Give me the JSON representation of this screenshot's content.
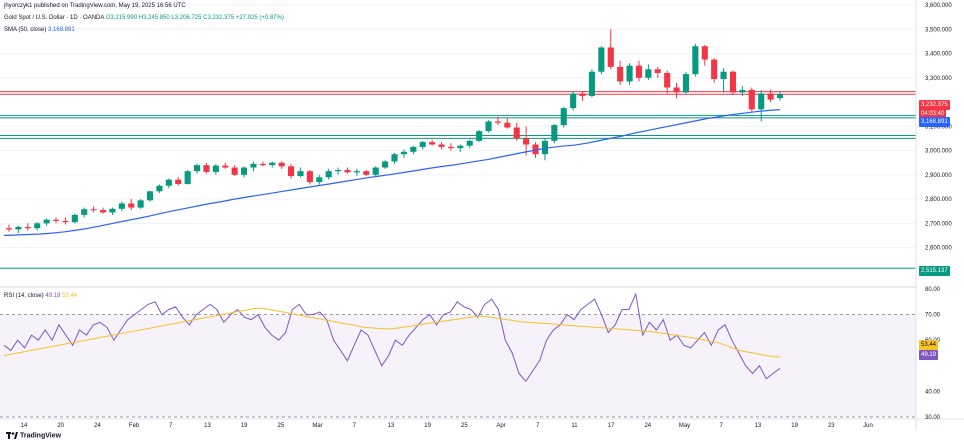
{
  "header": {
    "published": "jhyorczyk1 published on TradingView.com, May 19, 2025 16:56 UTC",
    "symbol": "Gold Spot / U.S. Dollar · 1D · OANDA",
    "ohlc": "O3,215.990 H3,245.850 L3,206.725 C3,232.375 +27.925 (+0.87%)",
    "sma_label": "SMA (50, close)",
    "sma_value": "3,168.891",
    "rsi_label": "RSI (14, close)",
    "rsi_value": "49.19",
    "rsi_ma_value": "53.44"
  },
  "price_tags": {
    "close": "3,232.375",
    "close_sub": "04:03:40",
    "sma": "3,168.891",
    "level": "2,515.137"
  },
  "rsi_tags": {
    "ma": "53.44",
    "rsi": "49.19"
  },
  "footer": {
    "brand": "TradingView"
  },
  "colors": {
    "up": "#089981",
    "down": "#f23645",
    "sma": "#2962ff",
    "rsi": "#7e57c2",
    "rsi_ma": "#f7c325",
    "resistance": "#f23645",
    "support": "#089981"
  },
  "chart_data": [
    {
      "type": "candlestick",
      "title": "Gold Spot / U.S. Dollar · 1D · OANDA",
      "ylim": [
        2450,
        3600
      ],
      "y_ticks": [
        "3,600.000",
        "3,500.000",
        "3,400.000",
        "3,300.000",
        "3,100.000",
        "3,000.000",
        "2,900.000",
        "2,800.000",
        "2,700.000",
        "2,600.000"
      ],
      "x_ticks": [
        "14",
        "20",
        "24",
        "Feb",
        "7",
        "13",
        "19",
        "25",
        "Mar",
        "7",
        "13",
        "19",
        "25",
        "Apr",
        "7",
        "11",
        "17",
        "24",
        "May",
        "7",
        "13",
        "19",
        "23",
        "Jun"
      ],
      "horizontal_levels": [
        {
          "price": 3232,
          "color": "#f23645"
        },
        {
          "price": 3243,
          "color": "#f23645"
        },
        {
          "price": 3145,
          "color": "#089981"
        },
        {
          "price": 3135,
          "color": "#089981"
        },
        {
          "price": 3062,
          "color": "#089981"
        },
        {
          "price": 3050,
          "color": "#089981"
        },
        {
          "price": 2515.137,
          "color": "#089981"
        }
      ],
      "candles": [
        {
          "o": 2680,
          "h": 2695,
          "l": 2665,
          "c": 2675
        },
        {
          "o": 2675,
          "h": 2690,
          "l": 2660,
          "c": 2685
        },
        {
          "o": 2685,
          "h": 2700,
          "l": 2670,
          "c": 2680
        },
        {
          "o": 2680,
          "h": 2705,
          "l": 2670,
          "c": 2700
        },
        {
          "o": 2700,
          "h": 2720,
          "l": 2690,
          "c": 2715
        },
        {
          "o": 2715,
          "h": 2725,
          "l": 2700,
          "c": 2710
        },
        {
          "o": 2710,
          "h": 2725,
          "l": 2695,
          "c": 2705
        },
        {
          "o": 2705,
          "h": 2740,
          "l": 2700,
          "c": 2735
        },
        {
          "o": 2735,
          "h": 2765,
          "l": 2725,
          "c": 2758
        },
        {
          "o": 2758,
          "h": 2770,
          "l": 2745,
          "c": 2755
        },
        {
          "o": 2755,
          "h": 2765,
          "l": 2740,
          "c": 2745
        },
        {
          "o": 2745,
          "h": 2765,
          "l": 2735,
          "c": 2760
        },
        {
          "o": 2760,
          "h": 2790,
          "l": 2750,
          "c": 2782
        },
        {
          "o": 2782,
          "h": 2800,
          "l": 2755,
          "c": 2765
        },
        {
          "o": 2765,
          "h": 2800,
          "l": 2760,
          "c": 2795
        },
        {
          "o": 2795,
          "h": 2835,
          "l": 2790,
          "c": 2832
        },
        {
          "o": 2832,
          "h": 2860,
          "l": 2825,
          "c": 2855
        },
        {
          "o": 2855,
          "h": 2885,
          "l": 2845,
          "c": 2880
        },
        {
          "o": 2880,
          "h": 2890,
          "l": 2855,
          "c": 2862
        },
        {
          "o": 2862,
          "h": 2920,
          "l": 2860,
          "c": 2915
        },
        {
          "o": 2915,
          "h": 2945,
          "l": 2905,
          "c": 2940
        },
        {
          "o": 2940,
          "h": 2950,
          "l": 2905,
          "c": 2912
        },
        {
          "o": 2912,
          "h": 2945,
          "l": 2900,
          "c": 2938
        },
        {
          "o": 2938,
          "h": 2950,
          "l": 2925,
          "c": 2930
        },
        {
          "o": 2930,
          "h": 2940,
          "l": 2895,
          "c": 2900
        },
        {
          "o": 2900,
          "h": 2935,
          "l": 2890,
          "c": 2930
        },
        {
          "o": 2930,
          "h": 2955,
          "l": 2915,
          "c": 2945
        },
        {
          "o": 2945,
          "h": 2955,
          "l": 2935,
          "c": 2940
        },
        {
          "o": 2940,
          "h": 2955,
          "l": 2930,
          "c": 2950
        },
        {
          "o": 2950,
          "h": 2955,
          "l": 2925,
          "c": 2935
        },
        {
          "o": 2935,
          "h": 2945,
          "l": 2885,
          "c": 2895
        },
        {
          "o": 2895,
          "h": 2930,
          "l": 2890,
          "c": 2915
        },
        {
          "o": 2915,
          "h": 2920,
          "l": 2860,
          "c": 2870
        },
        {
          "o": 2870,
          "h": 2900,
          "l": 2860,
          "c": 2890
        },
        {
          "o": 2890,
          "h": 2925,
          "l": 2880,
          "c": 2915
        },
        {
          "o": 2915,
          "h": 2930,
          "l": 2900,
          "c": 2920
        },
        {
          "o": 2920,
          "h": 2930,
          "l": 2905,
          "c": 2910
        },
        {
          "o": 2910,
          "h": 2925,
          "l": 2895,
          "c": 2915
        },
        {
          "o": 2915,
          "h": 2920,
          "l": 2895,
          "c": 2900
        },
        {
          "o": 2900,
          "h": 2935,
          "l": 2895,
          "c": 2930
        },
        {
          "o": 2930,
          "h": 2960,
          "l": 2925,
          "c": 2955
        },
        {
          "o": 2955,
          "h": 2990,
          "l": 2945,
          "c": 2985
        },
        {
          "o": 2985,
          "h": 3005,
          "l": 2970,
          "c": 2995
        },
        {
          "o": 2995,
          "h": 3020,
          "l": 2985,
          "c": 3015
        },
        {
          "o": 3015,
          "h": 3040,
          "l": 3005,
          "c": 3035
        },
        {
          "o": 3035,
          "h": 3045,
          "l": 3020,
          "c": 3025
        },
        {
          "o": 3025,
          "h": 3035,
          "l": 3005,
          "c": 3015
        },
        {
          "o": 3015,
          "h": 3030,
          "l": 3000,
          "c": 3010
        },
        {
          "o": 3010,
          "h": 3025,
          "l": 2995,
          "c": 3020
        },
        {
          "o": 3020,
          "h": 3045,
          "l": 3010,
          "c": 3040
        },
        {
          "o": 3040,
          "h": 3085,
          "l": 3035,
          "c": 3080
        },
        {
          "o": 3080,
          "h": 3125,
          "l": 3075,
          "c": 3120
        },
        {
          "o": 3120,
          "h": 3140,
          "l": 3105,
          "c": 3115
        },
        {
          "o": 3115,
          "h": 3135,
          "l": 3090,
          "c": 3095
        },
        {
          "o": 3095,
          "h": 3115,
          "l": 3040,
          "c": 3050
        },
        {
          "o": 3050,
          "h": 3100,
          "l": 2980,
          "c": 3025
        },
        {
          "o": 3025,
          "h": 3035,
          "l": 2970,
          "c": 2985
        },
        {
          "o": 2985,
          "h": 3050,
          "l": 2960,
          "c": 3040
        },
        {
          "o": 3040,
          "h": 3110,
          "l": 3030,
          "c": 3105
        },
        {
          "o": 3105,
          "h": 3180,
          "l": 3095,
          "c": 3175
        },
        {
          "o": 3175,
          "h": 3245,
          "l": 3165,
          "c": 3235
        },
        {
          "o": 3235,
          "h": 3245,
          "l": 3205,
          "c": 3225
        },
        {
          "o": 3225,
          "h": 3335,
          "l": 3220,
          "c": 3325
        },
        {
          "o": 3325,
          "h": 3430,
          "l": 3315,
          "c": 3425
        },
        {
          "o": 3425,
          "h": 3500,
          "l": 3335,
          "c": 3345
        },
        {
          "o": 3345,
          "h": 3370,
          "l": 3270,
          "c": 3285
        },
        {
          "o": 3285,
          "h": 3360,
          "l": 3270,
          "c": 3350
        },
        {
          "o": 3350,
          "h": 3370,
          "l": 3285,
          "c": 3300
        },
        {
          "o": 3300,
          "h": 3355,
          "l": 3290,
          "c": 3335
        },
        {
          "o": 3335,
          "h": 3345,
          "l": 3300,
          "c": 3320
        },
        {
          "o": 3320,
          "h": 3330,
          "l": 3235,
          "c": 3260
        },
        {
          "o": 3260,
          "h": 3280,
          "l": 3215,
          "c": 3240
        },
        {
          "o": 3240,
          "h": 3325,
          "l": 3235,
          "c": 3315
        },
        {
          "o": 3315,
          "h": 3440,
          "l": 3305,
          "c": 3430
        },
        {
          "o": 3430,
          "h": 3435,
          "l": 3350,
          "c": 3375
        },
        {
          "o": 3375,
          "h": 3380,
          "l": 3280,
          "c": 3295
        },
        {
          "o": 3295,
          "h": 3340,
          "l": 3240,
          "c": 3325
        },
        {
          "o": 3325,
          "h": 3330,
          "l": 3230,
          "c": 3240
        },
        {
          "o": 3240,
          "h": 3265,
          "l": 3225,
          "c": 3250
        },
        {
          "o": 3250,
          "h": 3260,
          "l": 3160,
          "c": 3170
        },
        {
          "o": 3170,
          "h": 3250,
          "l": 3120,
          "c": 3235
        },
        {
          "o": 3235,
          "h": 3252,
          "l": 3200,
          "c": 3210
        },
        {
          "o": 3216,
          "h": 3246,
          "l": 3207,
          "c": 3232
        }
      ],
      "sma": [
        2650,
        2652,
        2654,
        2656,
        2660,
        2665,
        2672,
        2680,
        2690,
        2700,
        2710,
        2720,
        2730,
        2742,
        2752,
        2762,
        2772,
        2782,
        2790,
        2800,
        2808,
        2816,
        2824,
        2832,
        2840,
        2848,
        2856,
        2864,
        2872,
        2880,
        2888,
        2895,
        2902,
        2910,
        2918,
        2926,
        2934,
        2940,
        2948,
        2956,
        2964,
        2974,
        2984,
        2994,
        3004,
        3012,
        3018,
        3022,
        3030,
        3040,
        3050,
        3060,
        3072,
        3082,
        3092,
        3102,
        3112,
        3122,
        3132,
        3140,
        3148,
        3154,
        3160,
        3165,
        3169
      ]
    },
    {
      "type": "line",
      "title": "RSI (14, close)",
      "ylim": [
        30,
        80
      ],
      "y_ticks": [
        "80.00",
        "70.00",
        "60.00",
        "40.00",
        "30.00"
      ],
      "series": [
        {
          "name": "RSI",
          "color": "#7e57c2",
          "values": [
            58,
            56,
            60,
            57,
            62,
            60,
            64,
            60,
            66,
            62,
            58,
            64,
            62,
            66,
            67,
            65,
            60,
            64,
            68,
            70,
            72,
            74,
            75,
            70,
            72,
            73,
            69,
            66,
            70,
            72,
            74,
            72,
            67,
            70,
            72,
            69,
            68,
            70,
            65,
            62,
            60,
            63,
            72,
            74,
            70,
            70,
            71,
            68,
            60,
            56,
            52,
            58,
            64,
            62,
            56,
            50,
            54,
            60,
            58,
            62,
            65,
            68,
            70,
            66,
            70,
            71,
            75,
            73,
            72,
            69,
            74,
            76,
            72,
            60,
            55,
            47,
            44,
            48,
            52,
            60,
            64,
            66,
            70,
            68,
            72,
            74,
            76,
            70,
            63,
            66,
            72,
            72,
            78,
            62,
            67,
            64,
            68,
            60,
            62,
            58,
            57,
            60,
            63,
            58,
            64,
            66,
            60,
            55,
            50,
            47,
            50,
            45,
            47,
            49
          ]
        },
        {
          "name": "RSI-based MA",
          "color": "#f7c325",
          "values": [
            54,
            54.5,
            55,
            55.5,
            56,
            56.5,
            57,
            57.5,
            58,
            58.5,
            59,
            59.5,
            60,
            60.5,
            61,
            61.5,
            62,
            62.5,
            63,
            63.5,
            64,
            64.5,
            65,
            65.5,
            66,
            66.5,
            67,
            67.5,
            68,
            68.5,
            69,
            69.5,
            70,
            70.5,
            71,
            71.5,
            72,
            72.5,
            72.5,
            72,
            71.5,
            71,
            70.5,
            70,
            69.5,
            69,
            68.5,
            68,
            67.5,
            67,
            66.5,
            66,
            65.5,
            65,
            64.8,
            64.6,
            64.4,
            64.5,
            64.8,
            65.2,
            65.6,
            66,
            66.4,
            66.8,
            67.2,
            67.6,
            68,
            68.4,
            68.8,
            69.2,
            69.4,
            69.2,
            68.8,
            68.4,
            68,
            67.6,
            67.2,
            67,
            66.8,
            66.6,
            66.4,
            66.2,
            66,
            65.8,
            65.6,
            65.4,
            65.2,
            65,
            64.8,
            64.6,
            64.4,
            64.2,
            64,
            63.8,
            63.6,
            63.4,
            63,
            62.6,
            62.2,
            61.8,
            61.4,
            61,
            60.5,
            60,
            59.5,
            59,
            58,
            57,
            56,
            55.5,
            55,
            54.5,
            54,
            53.5,
            53.44
          ]
        }
      ],
      "reference_lines": [
        70,
        30
      ]
    }
  ]
}
